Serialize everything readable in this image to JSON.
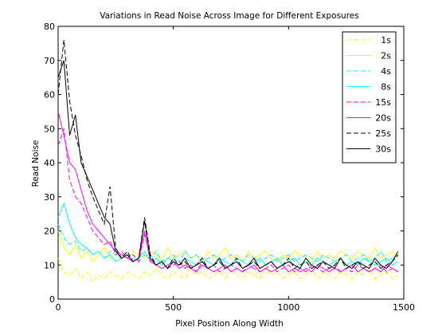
{
  "chart_data": {
    "type": "line",
    "title": "Variations in Read Noise Across Image for Different Exposures",
    "xlabel": "Pixel Position Along Width",
    "ylabel": "Read Noise",
    "xlim": [
      0,
      1500
    ],
    "ylim": [
      0,
      80
    ],
    "xticks": [
      0,
      500,
      1000,
      1500
    ],
    "yticks": [
      0,
      10,
      20,
      30,
      40,
      50,
      60,
      70,
      80
    ],
    "grid": false,
    "legend_position": "top-right",
    "x": [
      0,
      25,
      50,
      75,
      100,
      125,
      150,
      175,
      200,
      225,
      250,
      275,
      300,
      325,
      350,
      375,
      400,
      425,
      450,
      475,
      500,
      525,
      550,
      575,
      600,
      625,
      650,
      675,
      700,
      725,
      750,
      775,
      800,
      825,
      850,
      875,
      900,
      925,
      950,
      975,
      1000,
      1025,
      1050,
      1075,
      1100,
      1125,
      1150,
      1175,
      1200,
      1225,
      1250,
      1275,
      1300,
      1325,
      1350,
      1375,
      1400,
      1425,
      1450,
      1475
    ],
    "series": [
      {
        "name": "1s",
        "color": "#ffff00",
        "dash": "dashed",
        "values": [
          12,
          8,
          7,
          9,
          6,
          8,
          5,
          7,
          6,
          8,
          7,
          6,
          8,
          7,
          6,
          8,
          7,
          9,
          7,
          6,
          8,
          7,
          6,
          9,
          7,
          8,
          6,
          7,
          8,
          6,
          9,
          7,
          6,
          8,
          7,
          6,
          9,
          7,
          8,
          6,
          7,
          8,
          6,
          7,
          9,
          6,
          8,
          7,
          6,
          8,
          7,
          6,
          8,
          7,
          9,
          6,
          7,
          8,
          6,
          7
        ]
      },
      {
        "name": "2s",
        "color": "#ffff00",
        "dash": "solid",
        "values": [
          20,
          15,
          13,
          16,
          12,
          14,
          11,
          13,
          15,
          12,
          14,
          13,
          12,
          14,
          13,
          12,
          14,
          13,
          11,
          15,
          12,
          13,
          14,
          12,
          13,
          11,
          14,
          12,
          13,
          15,
          12,
          13,
          11,
          14,
          12,
          13,
          14,
          12,
          11,
          13,
          12,
          14,
          13,
          12,
          11,
          14,
          12,
          13,
          12,
          14,
          13,
          12,
          14,
          13,
          12,
          15,
          12,
          13,
          14,
          12
        ]
      },
      {
        "name": "4s",
        "color": "#00ffff",
        "dash": "dashed",
        "values": [
          22,
          18,
          16,
          17,
          14,
          15,
          13,
          14,
          12,
          14,
          13,
          12,
          13,
          12,
          11,
          13,
          12,
          14,
          11,
          12,
          13,
          11,
          14,
          12,
          13,
          11,
          12,
          13,
          11,
          12,
          13,
          12,
          11,
          13,
          12,
          11,
          12,
          13,
          11,
          12,
          13,
          11,
          12,
          13,
          12,
          11,
          13,
          12,
          11,
          12,
          13,
          11,
          12,
          13,
          11,
          12,
          14,
          11,
          12,
          13
        ]
      },
      {
        "name": "8s",
        "color": "#00ffff",
        "dash": "solid",
        "values": [
          24,
          28,
          22,
          18,
          16,
          15,
          13,
          14,
          12,
          13,
          11,
          12,
          13,
          11,
          12,
          14,
          11,
          12,
          10,
          12,
          11,
          10,
          12,
          11,
          10,
          12,
          11,
          10,
          12,
          11,
          10,
          12,
          11,
          10,
          11,
          12,
          10,
          11,
          12,
          10,
          11,
          12,
          10,
          11,
          10,
          12,
          11,
          10,
          11,
          12,
          10,
          11,
          10,
          12,
          11,
          10,
          11,
          12,
          10,
          11
        ]
      },
      {
        "name": "15s",
        "color": "#ff00ff",
        "dash": "dashed",
        "values": [
          45,
          50,
          35,
          30,
          28,
          24,
          20,
          18,
          16,
          17,
          13,
          14,
          12,
          13,
          11,
          19,
          12,
          10,
          11,
          9,
          10,
          11,
          9,
          10,
          8,
          11,
          9,
          10,
          8,
          9,
          10,
          9,
          8,
          10,
          9,
          8,
          9,
          10,
          8,
          9,
          10,
          8,
          9,
          8,
          10,
          9,
          8,
          9,
          10,
          8,
          9,
          8,
          10,
          9,
          8,
          9,
          10,
          8,
          9,
          8
        ]
      },
      {
        "name": "20s",
        "color": "#ff00ff",
        "dash": "solid",
        "values": [
          55,
          48,
          40,
          38,
          32,
          26,
          22,
          20,
          18,
          16,
          14,
          13,
          12,
          11,
          12,
          20,
          11,
          10,
          9,
          10,
          11,
          9,
          10,
          9,
          8,
          10,
          9,
          8,
          9,
          10,
          8,
          9,
          8,
          9,
          10,
          8,
          9,
          8,
          9,
          10,
          8,
          9,
          8,
          9,
          8,
          10,
          9,
          8,
          9,
          8,
          9,
          10,
          8,
          9,
          8,
          9,
          8,
          10,
          9,
          8
        ]
      },
      {
        "name": "25s",
        "color": "#000000",
        "dash": "dashed",
        "values": [
          60,
          76,
          58,
          48,
          42,
          35,
          30,
          26,
          22,
          33,
          15,
          12,
          14,
          11,
          12,
          24,
          13,
          10,
          11,
          9,
          12,
          10,
          11,
          9,
          10,
          12,
          9,
          10,
          11,
          9,
          10,
          12,
          9,
          10,
          11,
          9,
          10,
          11,
          9,
          10,
          12,
          9,
          10,
          11,
          9,
          10,
          11,
          9,
          10,
          12,
          9,
          10,
          11,
          9,
          10,
          11,
          9,
          10,
          11,
          13
        ]
      },
      {
        "name": "30s",
        "color": "#000000",
        "dash": "solid",
        "values": [
          65,
          70,
          48,
          54,
          40,
          36,
          32,
          28,
          24,
          22,
          14,
          12,
          13,
          11,
          12,
          23,
          12,
          10,
          11,
          9,
          11,
          10,
          12,
          9,
          10,
          11,
          9,
          10,
          12,
          9,
          10,
          11,
          9,
          10,
          12,
          9,
          10,
          11,
          9,
          10,
          11,
          10,
          9,
          12,
          10,
          9,
          11,
          10,
          9,
          12,
          10,
          9,
          11,
          10,
          9,
          12,
          10,
          9,
          11,
          14
        ]
      }
    ]
  }
}
